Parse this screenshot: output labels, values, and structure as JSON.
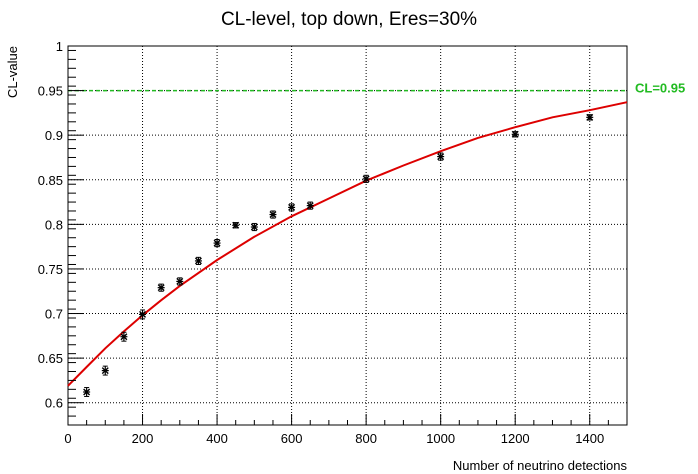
{
  "chart_data": {
    "type": "scatter",
    "title": "CL-level, top down, Eres=30%",
    "xlabel": "Number of neutrino detections",
    "ylabel": "CL-value",
    "xlim": [
      0,
      1500
    ],
    "ylim": [
      0.575,
      1.0
    ],
    "x_ticks": [
      "0",
      "200",
      "400",
      "600",
      "800",
      "1000",
      "1200",
      "1400"
    ],
    "y_ticks": [
      "0.6",
      "0.65",
      "0.7",
      "0.75",
      "0.8",
      "0.85",
      "0.9",
      "0.95",
      "1"
    ],
    "grid": true,
    "series": [
      {
        "kind": "points_with_errors",
        "color": "#000000",
        "x": [
          50,
          100,
          150,
          200,
          250,
          300,
          350,
          400,
          450,
          500,
          550,
          600,
          650,
          800,
          1000,
          1200,
          1400
        ],
        "y": [
          0.612,
          0.636,
          0.674,
          0.699,
          0.729,
          0.736,
          0.759,
          0.779,
          0.799,
          0.797,
          0.811,
          0.819,
          0.821,
          0.851,
          0.876,
          0.901,
          0.92
        ],
        "yerr": [
          0.005,
          0.005,
          0.005,
          0.005,
          0.004,
          0.004,
          0.004,
          0.004,
          0.003,
          0.004,
          0.004,
          0.004,
          0.004,
          0.004,
          0.004,
          0.003,
          0.003
        ]
      },
      {
        "kind": "fit_curve",
        "color": "#dd0000",
        "x": [
          0,
          50,
          100,
          150,
          200,
          250,
          300,
          400,
          500,
          600,
          700,
          800,
          900,
          1000,
          1100,
          1200,
          1300,
          1400,
          1500
        ],
        "y": [
          0.619,
          0.64,
          0.661,
          0.68,
          0.698,
          0.715,
          0.731,
          0.76,
          0.786,
          0.809,
          0.829,
          0.849,
          0.866,
          0.882,
          0.897,
          0.909,
          0.92,
          0.928,
          0.937
        ]
      }
    ],
    "reference_line": {
      "y": 0.95,
      "label": "CL=0.95",
      "color": "#22bb22",
      "style": "dashed"
    }
  }
}
